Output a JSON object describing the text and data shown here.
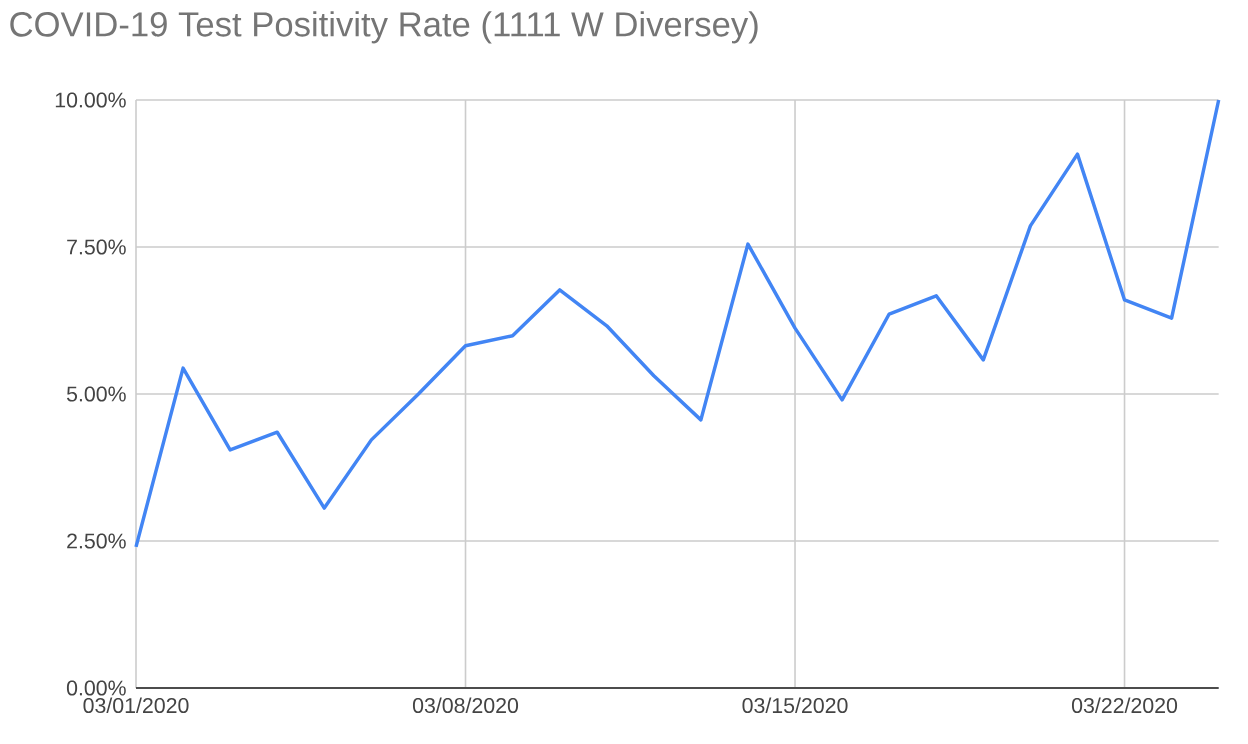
{
  "chart_data": {
    "type": "line",
    "title": "COVID-19 Test Positivity Rate (1111 W Diversey)",
    "x": [
      "2020-03-01",
      "2020-03-02",
      "2020-03-03",
      "2020-03-04",
      "2020-03-05",
      "2020-03-06",
      "2020-03-07",
      "2020-03-08",
      "2020-03-09",
      "2020-03-10",
      "2020-03-11",
      "2020-03-12",
      "2020-03-13",
      "2020-03-14",
      "2020-03-15",
      "2020-03-16",
      "2020-03-17",
      "2020-03-18",
      "2020-03-19",
      "2020-03-20",
      "2020-03-21",
      "2020-03-22",
      "2020-03-23",
      "2020-03-24"
    ],
    "series": [
      {
        "color": "#4285f4",
        "values": [
          2.4,
          5.44,
          4.05,
          4.35,
          3.06,
          4.22,
          5.0,
          5.82,
          5.99,
          6.77,
          6.16,
          5.31,
          4.56,
          7.55,
          6.12,
          4.9,
          6.36,
          6.67,
          5.58,
          7.86,
          9.08,
          6.6,
          6.29,
          10.0
        ]
      }
    ],
    "xlim": [
      "2020-03-01",
      "2020-03-24"
    ],
    "xticks": [
      {
        "value": "2020-03-01",
        "label": "03/01/2020"
      },
      {
        "value": "2020-03-08",
        "label": "03/08/2020"
      },
      {
        "value": "2020-03-15",
        "label": "03/15/2020"
      },
      {
        "value": "2020-03-22",
        "label": "03/22/2020"
      }
    ],
    "ylim": [
      0,
      10
    ],
    "yticks": [
      {
        "value": 0,
        "label": "0.00%"
      },
      {
        "value": 2.5,
        "label": "2.50%"
      },
      {
        "value": 5,
        "label": "5.00%"
      },
      {
        "value": 7.5,
        "label": "7.50%"
      },
      {
        "value": 10,
        "label": "10.00%"
      }
    ],
    "grid": true,
    "marker": "none",
    "line_style": "solid"
  }
}
